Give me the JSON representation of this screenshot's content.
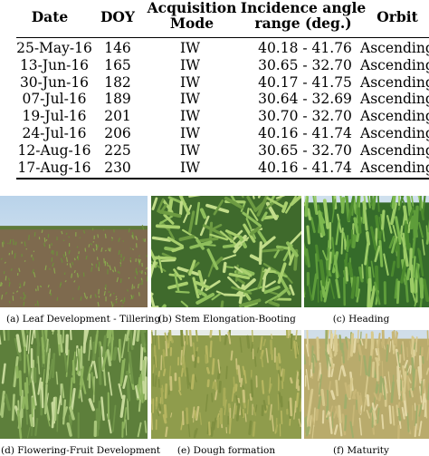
{
  "table": {
    "headers": [
      [
        "Date"
      ],
      [
        "DOY"
      ],
      [
        "Acquisition",
        "Mode"
      ],
      [
        "Incidence angle",
        "range (deg.)"
      ],
      [
        "Orbit"
      ]
    ],
    "rows": [
      [
        "25-May-16",
        "146",
        "IW",
        "40.18 - 41.76",
        "Ascending"
      ],
      [
        "13-Jun-16",
        "165",
        "IW",
        "30.65 - 32.70",
        "Ascending"
      ],
      [
        "30-Jun-16",
        "182",
        "IW",
        "40.17 - 41.75",
        "Ascending"
      ],
      [
        "07-Jul-16",
        "189",
        "IW",
        "30.64 - 32.69",
        "Ascending"
      ],
      [
        "19-Jul-16",
        "201",
        "IW",
        "30.70 - 32.70",
        "Ascending"
      ],
      [
        "24-Jul-16",
        "206",
        "IW",
        "40.16 - 41.74",
        "Ascending"
      ],
      [
        "12-Aug-16",
        "225",
        "IW",
        "30.65 - 32.70",
        "Ascending"
      ],
      [
        "17-Aug-16",
        "230",
        "IW",
        "40.16 - 41.74",
        "Ascending"
      ]
    ]
  },
  "photos": [
    {
      "caption": "(a) Leaf Development - Tillering",
      "icon": "wheat-field-tillering-photo"
    },
    {
      "caption": "(b) Stem Elongation-Booting",
      "icon": "wheat-stem-elongation-photo"
    },
    {
      "caption": "(c) Heading",
      "icon": "wheat-heading-photo"
    },
    {
      "caption": "(d) Flowering-Fruit Development",
      "icon": "wheat-flowering-photo"
    },
    {
      "caption": "(e) Dough formation",
      "icon": "wheat-dough-formation-photo"
    },
    {
      "caption": "(f) Maturity",
      "icon": "wheat-maturity-photo"
    }
  ]
}
